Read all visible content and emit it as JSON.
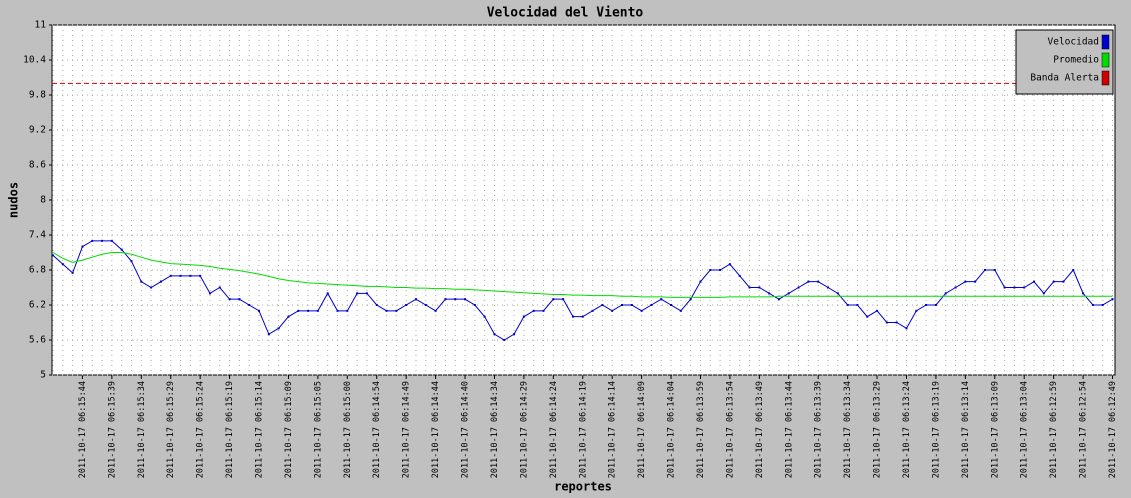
{
  "chart_data": {
    "type": "line",
    "title": "Velocidad del Viento",
    "x_label": "reportes",
    "y_label": "nudos",
    "categories": [
      null,
      null,
      null,
      "2011-10-17 06:15:44",
      null,
      null,
      "2011-10-17 06:15:39",
      null,
      null,
      "2011-10-17 06:15:34",
      null,
      null,
      "2011-10-17 06:15:29",
      null,
      null,
      "2011-10-17 06:15:24",
      null,
      null,
      "2011-10-17 06:15:19",
      null,
      null,
      "2011-10-17 06:15:14",
      null,
      null,
      "2011-10-17 06:15:09",
      null,
      null,
      "2011-10-17 06:15:05",
      null,
      null,
      "2011-10-17 06:15:00",
      null,
      null,
      "2011-10-17 06:14:54",
      null,
      null,
      "2011-10-17 06:14:49",
      null,
      null,
      "2011-10-17 06:14:44",
      null,
      null,
      "2011-10-17 06:14:40",
      null,
      null,
      "2011-10-17 06:14:34",
      null,
      null,
      "2011-10-17 06:14:29",
      null,
      null,
      "2011-10-17 06:14:24",
      null,
      null,
      "2011-10-17 06:14:19",
      null,
      null,
      "2011-10-17 06:14:14",
      null,
      null,
      "2011-10-17 06:14:09",
      null,
      null,
      "2011-10-17 06:14:04",
      null,
      null,
      "2011-10-17 06:13:59",
      null,
      null,
      "2011-10-17 06:13:54",
      null,
      null,
      "2011-10-17 06:13:49",
      null,
      null,
      "2011-10-17 06:13:44",
      null,
      null,
      "2011-10-17 06:13:39",
      null,
      null,
      "2011-10-17 06:13:34",
      null,
      null,
      "2011-10-17 06:13:29",
      null,
      null,
      "2011-10-17 06:13:24",
      null,
      null,
      "2011-10-17 06:13:19",
      null,
      null,
      "2011-10-17 06:13:14",
      null,
      null,
      "2011-10-17 06:13:09",
      null,
      null,
      "2011-10-17 06:13:04",
      null,
      null,
      "2011-10-17 06:12:59",
      null,
      null,
      "2011-10-17 06:12:54",
      null,
      null,
      "2011-10-17 06:12:49"
    ],
    "series": [
      {
        "name": "Velocidad",
        "color": "#0000cc",
        "values": [
          7.05,
          6.9,
          6.75,
          7.2,
          7.3,
          7.3,
          7.3,
          7.15,
          6.95,
          6.6,
          6.5,
          6.6,
          6.7,
          6.7,
          6.7,
          6.7,
          6.4,
          6.5,
          6.3,
          6.3,
          6.2,
          6.1,
          5.7,
          5.8,
          6.0,
          6.1,
          6.1,
          6.1,
          6.4,
          6.1,
          6.1,
          6.4,
          6.4,
          6.2,
          6.1,
          6.1,
          6.2,
          6.3,
          6.2,
          6.1,
          6.3,
          6.3,
          6.3,
          6.2,
          6.0,
          5.7,
          5.6,
          5.7,
          6.0,
          6.1,
          6.1,
          6.3,
          6.3,
          6.0,
          6.0,
          6.1,
          6.2,
          6.1,
          6.2,
          6.2,
          6.1,
          6.2,
          6.3,
          6.2,
          6.1,
          6.3,
          6.6,
          6.8,
          6.8,
          6.9,
          6.7,
          6.5,
          6.5,
          6.4,
          6.3,
          6.4,
          6.5,
          6.6,
          6.6,
          6.5,
          6.4,
          6.2,
          6.2,
          6.0,
          6.1,
          5.9,
          5.9,
          5.8,
          6.1,
          6.2,
          6.2,
          6.4,
          6.5,
          6.6,
          6.6,
          6.8,
          6.8,
          6.5,
          6.5,
          6.5,
          6.6,
          6.4,
          6.6,
          6.6,
          6.8,
          6.4,
          6.2,
          6.2,
          6.3
        ]
      },
      {
        "name": "Promedio",
        "color": "#00dd00",
        "values": [
          7.1,
          7.0,
          6.93,
          6.97,
          7.02,
          7.07,
          7.1,
          7.1,
          7.07,
          7.02,
          6.97,
          6.94,
          6.91,
          6.9,
          6.89,
          6.88,
          6.86,
          6.83,
          6.81,
          6.79,
          6.76,
          6.73,
          6.69,
          6.65,
          6.62,
          6.6,
          6.58,
          6.57,
          6.56,
          6.55,
          6.54,
          6.53,
          6.52,
          6.52,
          6.51,
          6.5,
          6.5,
          6.49,
          6.49,
          6.48,
          6.48,
          6.47,
          6.47,
          6.46,
          6.45,
          6.44,
          6.43,
          6.42,
          6.41,
          6.4,
          6.39,
          6.38,
          6.38,
          6.37,
          6.37,
          6.36,
          6.36,
          6.36,
          6.35,
          6.35,
          6.34,
          6.34,
          6.34,
          6.33,
          6.33,
          6.33,
          6.33,
          6.33,
          6.33,
          6.34,
          6.34,
          6.34,
          6.34,
          6.34,
          6.35,
          6.35,
          6.35,
          6.35,
          6.35,
          6.35,
          6.35,
          6.35,
          6.35,
          6.35,
          6.35,
          6.35,
          6.35,
          6.35,
          6.35,
          6.35,
          6.35,
          6.35,
          6.35,
          6.35,
          6.35,
          6.35,
          6.35,
          6.35,
          6.35,
          6.35,
          6.35,
          6.35,
          6.35,
          6.35,
          6.35,
          6.35,
          6.35,
          6.35,
          6.35
        ]
      }
    ],
    "alert": {
      "name": "Banda Alerta",
      "color": "#cc0000",
      "value": 10
    },
    "ylim": [
      5,
      11
    ],
    "yticks": [
      5,
      5.6,
      6.2,
      6.8,
      7.4,
      8,
      8.6,
      9.2,
      9.8,
      10.4,
      11
    ],
    "grid": true,
    "legend": "upper right"
  }
}
